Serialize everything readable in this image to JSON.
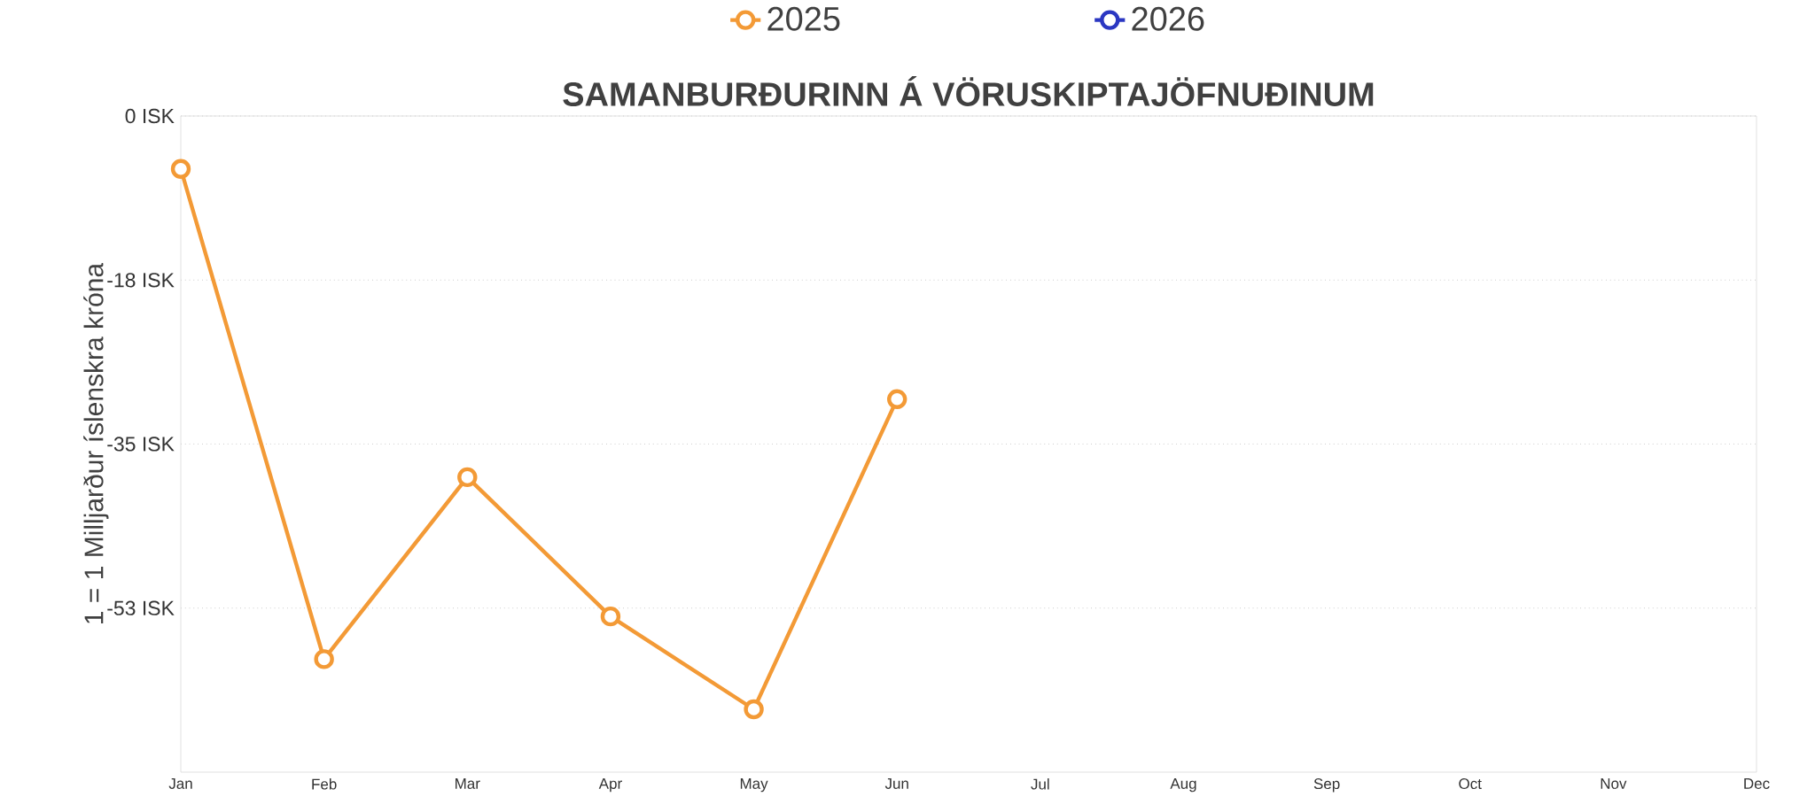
{
  "chart_data": {
    "type": "line",
    "title": "SAMANBURÐURINN Á VÖRUSKIPTAJÖFNUÐINUM",
    "ylabel": "1 = 1 Milljarður íslenskra króna",
    "categories": [
      "Jan",
      "Feb",
      "Mar",
      "Apr",
      "May",
      "Jun",
      "Jul",
      "Aug",
      "Sep",
      "Oct",
      "Nov",
      "Dec"
    ],
    "series": [
      {
        "name": "2025",
        "color": "#f39a36",
        "values": [
          -5.7,
          -58.5,
          -38.9,
          -53.9,
          -63.9,
          -30.5,
          null,
          null,
          null,
          null,
          null,
          null
        ]
      },
      {
        "name": "2026",
        "color": "#2b37c2",
        "values": [
          null,
          null,
          null,
          null,
          null,
          null,
          null,
          null,
          null,
          null,
          null,
          null
        ]
      }
    ],
    "ylim": [
      -70.67,
      0
    ],
    "yticks": [
      {
        "value": 0,
        "label": "0 ISK"
      },
      {
        "value": -17.67,
        "label": "-18 ISK"
      },
      {
        "value": -35.33,
        "label": "-35 ISK"
      },
      {
        "value": -53,
        "label": "-53 ISK"
      }
    ],
    "grid": "y",
    "legend": "top",
    "marker": "circle",
    "line_style": "solid"
  }
}
